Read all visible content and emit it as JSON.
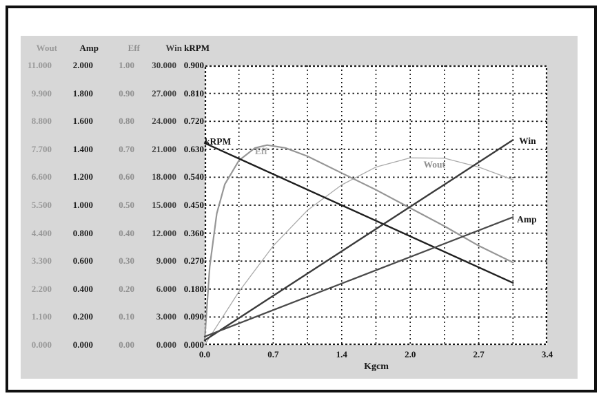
{
  "window": {
    "bg": "#ffffff",
    "frame_color": "#101010",
    "panel_bg": "#d7d7d7",
    "plot_bg": "#ffffff",
    "grid_color": "#1a1a1a"
  },
  "table": {
    "headers": [
      "Wout",
      "Amp",
      "Eff",
      "Win",
      "kRPM"
    ],
    "column_colors": [
      "#9a9a9a",
      "#1c1c1c",
      "#8f8f8f",
      "#3f3f3f",
      "#141414"
    ],
    "rows": [
      [
        "11.000",
        "2.000",
        "1.00",
        "30.000",
        "0.900"
      ],
      [
        "9.900",
        "1.800",
        "0.90",
        "27.000",
        "0.810"
      ],
      [
        "8.800",
        "1.600",
        "0.80",
        "24.000",
        "0.720"
      ],
      [
        "7.700",
        "1.400",
        "0.70",
        "21.000",
        "0.630"
      ],
      [
        "6.600",
        "1.200",
        "0.60",
        "18.000",
        "0.540"
      ],
      [
        "5.500",
        "1.000",
        "0.50",
        "15.000",
        "0.450"
      ],
      [
        "4.400",
        "0.800",
        "0.40",
        "12.000",
        "0.360"
      ],
      [
        "3.300",
        "0.600",
        "0.30",
        "9.000",
        "0.270"
      ],
      [
        "2.200",
        "0.400",
        "0.20",
        "6.000",
        "0.180"
      ],
      [
        "1.100",
        "0.200",
        "0.10",
        "3.000",
        "0.090"
      ],
      [
        "0.000",
        "0.000",
        "0.00",
        "0.000",
        "0.000"
      ]
    ]
  },
  "chart_data": {
    "type": "line",
    "title": "",
    "xlabel": "Kgcm",
    "x_range": [
      0,
      3.4
    ],
    "grid": {
      "cols": 10,
      "rows": 10,
      "on": true
    },
    "x_axis": {
      "ticks": [
        "0.0",
        "0.7",
        "1.4",
        "2.0",
        "2.7",
        "3.4"
      ],
      "label": "Kgcm"
    },
    "y_axes": [
      {
        "name": "Wout",
        "max": 11.0
      },
      {
        "name": "Amp",
        "max": 2.0
      },
      {
        "name": "Eff",
        "max": 1.0
      },
      {
        "name": "Win",
        "max": 30.0
      },
      {
        "name": "kRPM",
        "max": 0.9
      }
    ],
    "series": [
      {
        "name": "Wout",
        "unit_max": 11,
        "color": "#aaaaaa",
        "width": 1.3,
        "points": [
          [
            0,
            0
          ],
          [
            0.34,
            2.1
          ],
          [
            0.68,
            3.9
          ],
          [
            1.02,
            5.3
          ],
          [
            1.36,
            6.3
          ],
          [
            1.7,
            7.0
          ],
          [
            2.04,
            7.36
          ],
          [
            2.38,
            7.35
          ],
          [
            2.72,
            7.0
          ],
          [
            3.06,
            6.5
          ]
        ],
        "label": {
          "text": "Wout",
          "x": 2.28,
          "v": 7.1,
          "color": "#8e8e8e",
          "anchor": "middle"
        }
      },
      {
        "name": "Eff",
        "unit_max": 1.0,
        "color": "#969696",
        "width": 2.2,
        "points": [
          [
            0,
            0.02
          ],
          [
            0.05,
            0.28
          ],
          [
            0.12,
            0.47
          ],
          [
            0.2,
            0.575
          ],
          [
            0.34,
            0.66
          ],
          [
            0.5,
            0.705
          ],
          [
            0.62,
            0.715
          ],
          [
            0.8,
            0.705
          ],
          [
            1.02,
            0.675
          ],
          [
            1.36,
            0.615
          ],
          [
            1.7,
            0.555
          ],
          [
            2.04,
            0.49
          ],
          [
            2.38,
            0.425
          ],
          [
            2.72,
            0.355
          ],
          [
            3.06,
            0.295
          ]
        ],
        "label": {
          "text": "Eff",
          "x": 0.56,
          "v": 0.693,
          "color": "#a4a4a4",
          "anchor": "middle"
        }
      },
      {
        "name": "kRPM",
        "unit_max": 0.9,
        "color": "#1f1f1f",
        "width": 2.4,
        "points": [
          [
            0,
            0.65
          ],
          [
            3.06,
            0.2
          ]
        ],
        "label": {
          "text": "kRPM",
          "x": 0.0,
          "v": 0.655,
          "color": "#111111",
          "anchor": "start"
        }
      },
      {
        "name": "Win",
        "unit_max": 30,
        "color": "#3a3a3a",
        "width": 2.4,
        "points": [
          [
            0,
            0.5
          ],
          [
            3.06,
            22.0
          ]
        ],
        "label": {
          "text": "Win",
          "x": 3.12,
          "v": 21.9,
          "color": "#1a1a1a",
          "anchor": "start"
        }
      },
      {
        "name": "Amp",
        "unit_max": 2.0,
        "color": "#4a4a4a",
        "width": 2.3,
        "points": [
          [
            0,
            0.06
          ],
          [
            3.06,
            0.915
          ]
        ],
        "label": {
          "text": "Amp",
          "x": 3.1,
          "v": 0.9,
          "color": "#1a1a1a",
          "anchor": "start"
        }
      }
    ]
  }
}
